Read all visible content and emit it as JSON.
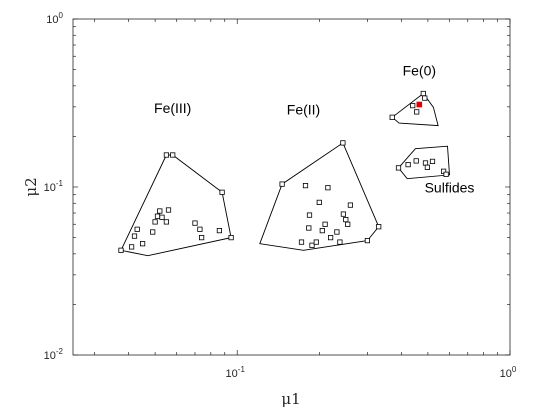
{
  "chart_data": {
    "type": "scatter",
    "title": "",
    "xlabel": "μ1",
    "ylabel": "μ2",
    "xscale": "log",
    "yscale": "log",
    "xlim": [
      0.025,
      1
    ],
    "ylim": [
      0.01,
      1
    ],
    "grid": false,
    "legend": "none",
    "x_ticks": [
      {
        "base": "10",
        "exp": "-1"
      },
      {
        "base": "10",
        "exp": "0"
      }
    ],
    "y_ticks": [
      {
        "base": "10",
        "exp": "-2"
      },
      {
        "base": "10",
        "exp": "-1"
      },
      {
        "base": "10",
        "exp": "0"
      }
    ],
    "marker_color": "#000000",
    "highlight_color": "#e00000",
    "groups": [
      {
        "name": "Fe(III)",
        "label_pos": [
          0.058,
          0.275
        ],
        "hull": [
          [
            0.0375,
            0.042
          ],
          [
            0.055,
            0.155
          ],
          [
            0.058,
            0.155
          ],
          [
            0.088,
            0.093
          ],
          [
            0.095,
            0.05
          ],
          [
            0.047,
            0.039
          ]
        ],
        "points": [
          [
            0.0375,
            0.042
          ],
          [
            0.041,
            0.044
          ],
          [
            0.042,
            0.051
          ],
          [
            0.043,
            0.056
          ],
          [
            0.045,
            0.046
          ],
          [
            0.049,
            0.054
          ],
          [
            0.05,
            0.062
          ],
          [
            0.051,
            0.067
          ],
          [
            0.052,
            0.072
          ],
          [
            0.053,
            0.066
          ],
          [
            0.055,
            0.062
          ],
          [
            0.056,
            0.073
          ],
          [
            0.055,
            0.155
          ],
          [
            0.058,
            0.155
          ],
          [
            0.07,
            0.061
          ],
          [
            0.073,
            0.056
          ],
          [
            0.074,
            0.05
          ],
          [
            0.086,
            0.055
          ],
          [
            0.088,
            0.093
          ],
          [
            0.095,
            0.05
          ]
        ]
      },
      {
        "name": "Fe(II)",
        "label_pos": [
          0.175,
          0.27
        ],
        "hull": [
          [
            0.121,
            0.046
          ],
          [
            0.146,
            0.104
          ],
          [
            0.244,
            0.183
          ],
          [
            0.33,
            0.058
          ],
          [
            0.3,
            0.048
          ],
          [
            0.175,
            0.042
          ]
        ],
        "points": [
          [
            0.146,
            0.104
          ],
          [
            0.172,
            0.047
          ],
          [
            0.178,
            0.102
          ],
          [
            0.183,
            0.057
          ],
          [
            0.184,
            0.068
          ],
          [
            0.188,
            0.045
          ],
          [
            0.195,
            0.047
          ],
          [
            0.2,
            0.081
          ],
          [
            0.205,
            0.055
          ],
          [
            0.21,
            0.06
          ],
          [
            0.215,
            0.099
          ],
          [
            0.22,
            0.05
          ],
          [
            0.232,
            0.054
          ],
          [
            0.238,
            0.047
          ],
          [
            0.244,
            0.183
          ],
          [
            0.245,
            0.069
          ],
          [
            0.25,
            0.064
          ],
          [
            0.254,
            0.06
          ],
          [
            0.26,
            0.078
          ],
          [
            0.3,
            0.048
          ],
          [
            0.33,
            0.058
          ]
        ]
      },
      {
        "name": "Fe(0)",
        "label_pos": [
          0.465,
          0.46
        ],
        "hull": [
          [
            0.37,
            0.26
          ],
          [
            0.481,
            0.36
          ],
          [
            0.524,
            0.298
          ],
          [
            0.545,
            0.232
          ],
          [
            0.392,
            0.24
          ]
        ],
        "points": [
          [
            0.37,
            0.26
          ],
          [
            0.44,
            0.305
          ],
          [
            0.455,
            0.28
          ],
          [
            0.481,
            0.36
          ],
          [
            0.487,
            0.338
          ]
        ],
        "highlight": [
          [
            0.465,
            0.31
          ]
        ]
      },
      {
        "name": "Sulfides",
        "label_pos": [
          0.6,
          0.093
        ],
        "hull": [
          [
            0.39,
            0.13
          ],
          [
            0.45,
            0.169
          ],
          [
            0.59,
            0.175
          ],
          [
            0.6,
            0.118
          ],
          [
            0.42,
            0.112
          ]
        ],
        "points": [
          [
            0.39,
            0.13
          ],
          [
            0.423,
            0.136
          ],
          [
            0.453,
            0.143
          ],
          [
            0.49,
            0.139
          ],
          [
            0.52,
            0.142
          ],
          [
            0.498,
            0.131
          ],
          [
            0.571,
            0.124
          ],
          [
            0.583,
            0.119
          ]
        ]
      }
    ]
  }
}
